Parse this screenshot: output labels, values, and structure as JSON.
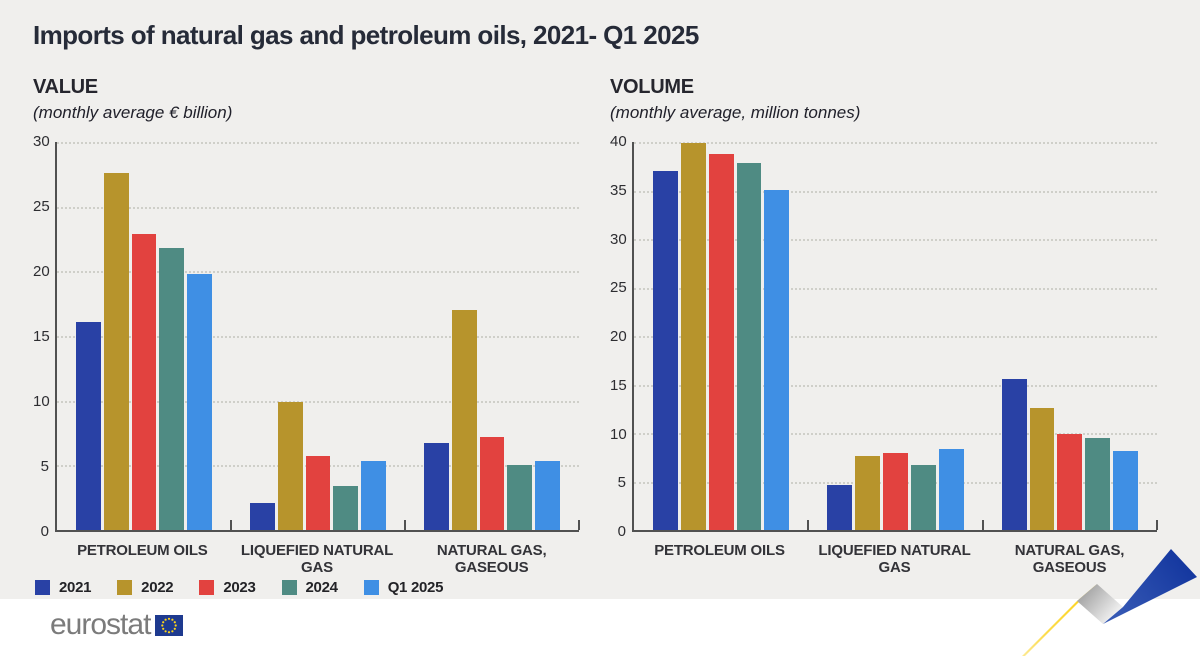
{
  "page": {
    "title": "Imports of natural gas and petroleum oils, 2021- Q1 2025"
  },
  "legend": {
    "items": [
      {
        "label": "2021",
        "color": "#2941a5"
      },
      {
        "label": "2022",
        "color": "#b7942c"
      },
      {
        "label": "2023",
        "color": "#e2423f"
      },
      {
        "label": "2024",
        "color": "#4f8b83"
      },
      {
        "label": "Q1 2025",
        "color": "#3f8fe4"
      }
    ]
  },
  "chart_data": [
    {
      "type": "bar",
      "title": "VALUE",
      "subtitle": "(monthly average € billion)",
      "categories": [
        "PETROLEUM OILS",
        "LIQUEFIED NATURAL GAS",
        "NATURAL GAS, GASEOUS"
      ],
      "series": [
        {
          "name": "2021",
          "color": "#2941a5",
          "values": [
            16.1,
            2.1,
            6.7
          ]
        },
        {
          "name": "2022",
          "color": "#b7942c",
          "values": [
            27.6,
            9.9,
            17.0
          ]
        },
        {
          "name": "2023",
          "color": "#e2423f",
          "values": [
            22.9,
            5.7,
            7.2
          ]
        },
        {
          "name": "2024",
          "color": "#4f8b83",
          "values": [
            21.8,
            3.4,
            5.0
          ]
        },
        {
          "name": "Q1 2025",
          "color": "#3f8fe4",
          "values": [
            19.8,
            5.3,
            5.3
          ]
        }
      ],
      "ylim": [
        0,
        30
      ],
      "yticks": [
        0,
        5,
        10,
        15,
        20,
        25,
        30
      ],
      "grid": "dotted horizontal",
      "legend_position": "bottom-left shared"
    },
    {
      "type": "bar",
      "title": "VOLUME",
      "subtitle": "(monthly average, million tonnes)",
      "categories": [
        "PETROLEUM OILS",
        "LIQUEFIED NATURAL GAS",
        "NATURAL GAS, GASEOUS"
      ],
      "series": [
        {
          "name": "2021",
          "color": "#2941a5",
          "values": [
            37.0,
            4.6,
            15.6
          ]
        },
        {
          "name": "2022",
          "color": "#b7942c",
          "values": [
            39.9,
            7.6,
            12.6
          ]
        },
        {
          "name": "2023",
          "color": "#e2423f",
          "values": [
            38.8,
            7.9,
            9.9
          ]
        },
        {
          "name": "2024",
          "color": "#4f8b83",
          "values": [
            37.8,
            6.7,
            9.5
          ]
        },
        {
          "name": "Q1 2025",
          "color": "#3f8fe4",
          "values": [
            35.1,
            8.4,
            8.1
          ]
        }
      ],
      "ylim": [
        0,
        40
      ],
      "yticks": [
        0,
        5,
        10,
        15,
        20,
        25,
        30,
        35,
        40
      ],
      "grid": "dotted horizontal",
      "legend_position": "bottom-left shared"
    }
  ],
  "footer": {
    "brand": "eurostat"
  },
  "decor": {
    "ribbon_yellow": "#fdd217",
    "ribbon_blue": "#1c3f9e",
    "flag_blue": "#1e3a8f",
    "flag_star": "#ffd617"
  }
}
